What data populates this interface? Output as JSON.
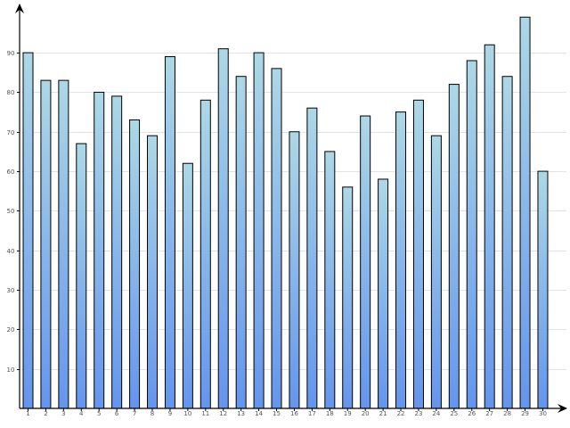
{
  "colors": {
    "bar_top": "#add8e6",
    "bar_bottom": "#6495ed",
    "grid": "#e3e3e3",
    "axis": "#000000",
    "tick_text": "#555555"
  },
  "chart_data": {
    "type": "bar",
    "title": "",
    "xlabel": "",
    "ylabel": "",
    "categories": [
      "1",
      "2",
      "3",
      "4",
      "5",
      "6",
      "7",
      "8",
      "9",
      "10",
      "11",
      "12",
      "13",
      "14",
      "15",
      "16",
      "17",
      "18",
      "19",
      "20",
      "21",
      "22",
      "23",
      "24",
      "25",
      "26",
      "27",
      "28",
      "29",
      "30"
    ],
    "values": [
      90,
      83,
      83,
      67,
      80,
      79,
      73,
      69,
      89,
      62,
      78,
      91,
      84,
      90,
      86,
      70,
      76,
      65,
      56,
      74,
      58,
      75,
      78,
      69,
      82,
      88,
      92,
      84,
      99,
      60
    ],
    "ylim": [
      0,
      100
    ],
    "y_ticks": [
      10,
      20,
      30,
      40,
      50,
      60,
      70,
      80,
      90
    ],
    "y_tick_labels": [
      "10",
      "20",
      "30",
      "40",
      "50",
      "60",
      "70",
      "80",
      "90"
    ],
    "grid": true,
    "legend": "none"
  }
}
